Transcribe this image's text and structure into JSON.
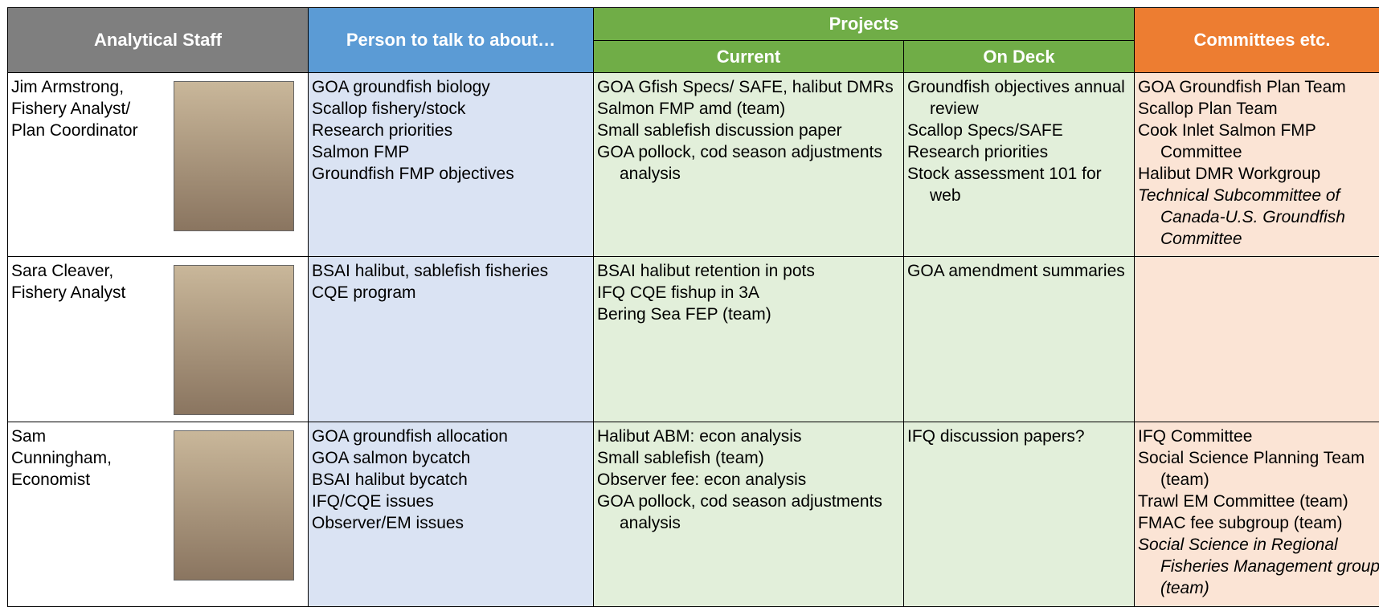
{
  "header": {
    "staff": "Analytical Staff",
    "person": "Person to talk to about…",
    "projects": "Projects",
    "current": "Current",
    "on_deck": "On Deck",
    "committees": "Committees etc."
  },
  "rows": [
    {
      "staff": [
        "Jim Armstrong,",
        "Fishery Analyst/",
        "Plan Coordinator"
      ],
      "person": [
        "GOA groundfish biology",
        "Scallop fishery/stock",
        "Research priorities",
        "Salmon FMP",
        "Groundfish FMP objectives"
      ],
      "current": [
        "GOA Gfish Specs/ SAFE, halibut DMRs",
        "Salmon FMP amd (team)",
        "Small sablefish discussion paper",
        "GOA pollock, cod season adjustments analysis"
      ],
      "on_deck": [
        "Groundfish objectives annual review",
        "Scallop Specs/SAFE",
        "Research priorities",
        "Stock assessment 101 for web"
      ],
      "committees": [
        {
          "text": "GOA Groundfish Plan Team"
        },
        {
          "text": "Scallop Plan Team"
        },
        {
          "text": "Cook Inlet Salmon FMP Committee"
        },
        {
          "text": "Halibut DMR Workgroup"
        },
        {
          "text": "Technical Subcommittee of Canada-U.S. Groundfish Committee",
          "italic": true
        }
      ]
    },
    {
      "staff": [
        "Sara Cleaver,",
        "Fishery Analyst"
      ],
      "person": [
        "BSAI halibut, sablefish fisheries",
        "CQE program"
      ],
      "current": [
        "BSAI halibut retention in pots",
        "IFQ CQE fishup in 3A",
        "Bering Sea FEP (team)"
      ],
      "on_deck": [
        "GOA amendment summaries"
      ],
      "committees": []
    },
    {
      "staff": [
        "Sam",
        "Cunningham,",
        "Economist"
      ],
      "person": [
        "GOA groundfish allocation",
        "GOA salmon bycatch",
        "BSAI halibut bycatch",
        "IFQ/CQE issues",
        "Observer/EM issues"
      ],
      "current": [
        "Halibut ABM: econ analysis",
        "Small sablefish (team)",
        "Observer fee: econ analysis",
        "GOA pollock, cod season adjustments analysis"
      ],
      "on_deck": [
        "IFQ discussion papers?"
      ],
      "committees": [
        {
          "text": "IFQ Committee"
        },
        {
          "text": "Social Science Planning Team (team)"
        },
        {
          "text": "Trawl EM Committee (team)"
        },
        {
          "text": "FMAC fee subgroup (team)"
        },
        {
          "text": "Social Science in Regional Fisheries Management group (team)",
          "italic": true
        }
      ]
    }
  ]
}
